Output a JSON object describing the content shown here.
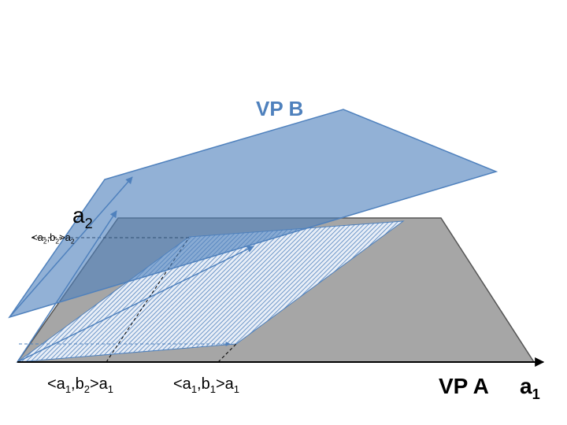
{
  "labels": {
    "vp_b": "VP B",
    "vp_a": "VP A",
    "axis_a2": [
      "a",
      "2"
    ],
    "axis_a1": [
      "a",
      "1"
    ],
    "proj_a2_b2": [
      "<a",
      "2",
      ",b",
      "2",
      ">a",
      "2"
    ],
    "proj_a1_b2": [
      "<a",
      "1",
      ",b",
      "2",
      ">a",
      "1"
    ],
    "proj_a1_b1": [
      "<a",
      "1",
      ",b",
      "1",
      ">a",
      "1"
    ]
  }
}
